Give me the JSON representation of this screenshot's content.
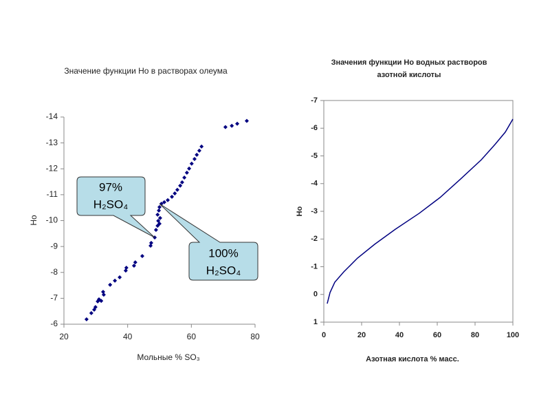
{
  "chart_data": [
    {
      "type": "scatter",
      "title": "Значение функции Но в растворах олеума",
      "x_label": "Мольные % SO₃",
      "y_label": "Но",
      "color": "#000080",
      "xlim": [
        20,
        80
      ],
      "xticks": [
        20,
        40,
        60,
        80
      ],
      "ylim": [
        -6,
        -14
      ],
      "yticks": [
        -6,
        -7,
        -8,
        -9,
        -10,
        -11,
        -12,
        -13,
        -14
      ],
      "x": [
        27.1,
        28.6,
        29.5,
        29.9,
        30.6,
        31.0,
        31.7,
        32.5,
        32.3,
        34.5,
        36.0,
        37.5,
        39.4,
        39.6,
        42.0,
        42.4,
        44.6,
        47.2,
        47.4,
        48.5,
        48.9,
        49.4,
        50.0,
        49.6,
        50.2,
        49.4,
        49.8,
        50.0,
        50.6,
        51.5,
        52.6,
        53.9,
        54.8,
        55.6,
        56.5,
        57.1,
        57.8,
        58.6,
        59.3,
        60.1,
        61.0,
        61.7,
        62.5,
        63.2,
        70.7,
        72.7,
        74.4,
        77.4
      ],
      "values": [
        -6.19,
        -6.43,
        -6.56,
        -6.66,
        -6.88,
        -6.96,
        -6.9,
        -7.14,
        -7.25,
        -7.52,
        -7.68,
        -7.81,
        -8.07,
        -8.18,
        -8.26,
        -8.39,
        -8.63,
        -9.03,
        -9.14,
        -9.35,
        -9.64,
        -9.8,
        -9.88,
        -9.99,
        -10.1,
        -10.23,
        -10.39,
        -10.52,
        -10.65,
        -10.71,
        -10.79,
        -10.92,
        -11.05,
        -11.19,
        -11.35,
        -11.48,
        -11.66,
        -11.85,
        -12.01,
        -12.2,
        -12.38,
        -12.54,
        -12.7,
        -12.86,
        -13.61,
        -13.66,
        -13.74,
        -13.85
      ],
      "annotations": [
        [
          "97%",
          "H₂SO₄"
        ],
        [
          "100%",
          "H₂SO₄"
        ]
      ]
    },
    {
      "type": "line",
      "title": [
        "Значения функции Но водных растворов",
        "азотной кислоты"
      ],
      "x_label": "Азотная кислота % масс.",
      "y_label": "Но",
      "color": "#000080",
      "xlim": [
        0,
        100
      ],
      "xticks": [
        0,
        20,
        40,
        60,
        80,
        100
      ],
      "ylim": [
        1,
        -7
      ],
      "yticks": [
        1,
        0,
        -1,
        -2,
        -3,
        -4,
        -5,
        -6,
        -7
      ],
      "x": [
        1.8,
        3.3,
        5.8,
        10.5,
        17.8,
        26.9,
        37.8,
        50.5,
        61.5,
        72.4,
        83.3,
        90.5,
        96,
        100
      ],
      "values": [
        0.33,
        -0.07,
        -0.44,
        -0.81,
        -1.31,
        -1.81,
        -2.35,
        -2.93,
        -3.5,
        -4.17,
        -4.86,
        -5.41,
        -5.86,
        -6.33
      ]
    }
  ]
}
